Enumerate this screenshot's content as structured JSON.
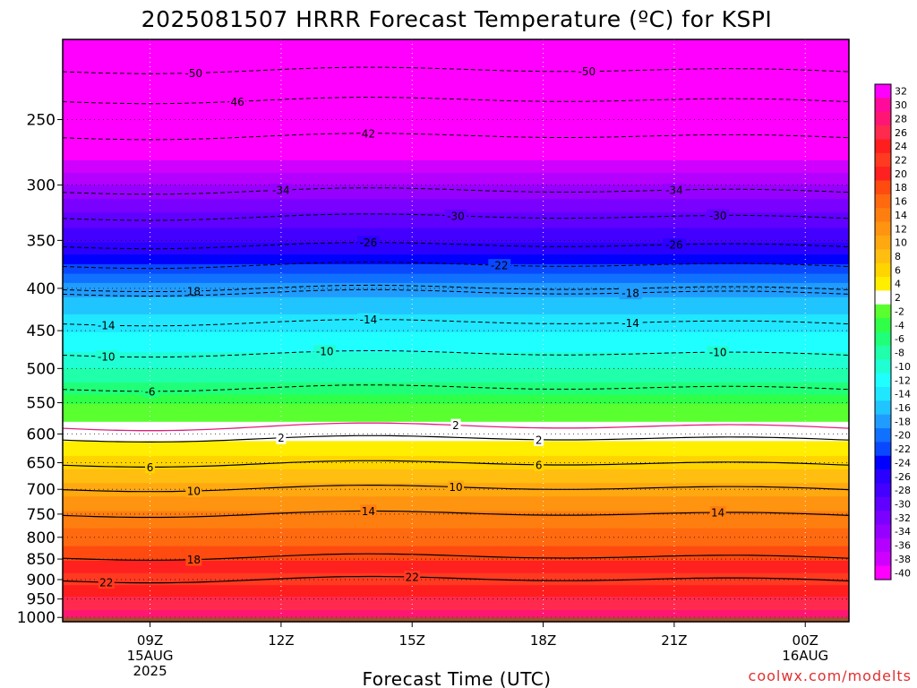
{
  "chart_data": {
    "type": "heatmap",
    "title": "2025081507 HRRR Forecast Temperature (ºC) for KSPI",
    "xlabel": "Forecast Time (UTC)",
    "ylabel": "",
    "credit": "coolwx.com/modelts",
    "credit_color": "#e03030",
    "x_ticks": [
      {
        "hour": 9,
        "lines": [
          "09Z",
          "15AUG",
          "2025"
        ]
      },
      {
        "hour": 12,
        "lines": [
          "12Z"
        ]
      },
      {
        "hour": 15,
        "lines": [
          "15Z"
        ]
      },
      {
        "hour": 18,
        "lines": [
          "18Z"
        ]
      },
      {
        "hour": 21,
        "lines": [
          "21Z"
        ]
      },
      {
        "hour": 24,
        "lines": [
          "00Z",
          "16AUG"
        ]
      }
    ],
    "xlim_hours": [
      7.0,
      25.0
    ],
    "y_ticks": [
      250,
      300,
      350,
      400,
      450,
      500,
      550,
      600,
      650,
      700,
      750,
      800,
      850,
      900,
      950,
      1000
    ],
    "ylim_hPa": [
      200,
      1012
    ],
    "y_scale": "log",
    "ground_level_hPa": 1000,
    "ground_color": "#a0522d",
    "grid": true,
    "colorbar": {
      "labels": [
        32,
        30,
        28,
        26,
        24,
        22,
        20,
        18,
        16,
        14,
        12,
        10,
        8,
        6,
        4,
        2,
        -2,
        -4,
        -6,
        -8,
        -10,
        -12,
        -14,
        -16,
        -18,
        -20,
        -22,
        -24,
        -26,
        -28,
        -30,
        -32,
        -34,
        -36,
        -38,
        -40
      ],
      "colors": [
        "#ff00ff",
        "#ff0a9a",
        "#ff1674",
        "#ff2a4e",
        "#ff1e1e",
        "#ff3a20",
        "#ff2020",
        "#ff4a10",
        "#ff6a10",
        "#ff7e10",
        "#ff9410",
        "#ffa810",
        "#ffbe10",
        "#ffd400",
        "#ffee00",
        "#ffffff",
        "#5aff30",
        "#30ff48",
        "#20ff78",
        "#20ffaa",
        "#20ffd4",
        "#20ffff",
        "#20e6ff",
        "#20c4ff",
        "#209cff",
        "#1070ff",
        "#0a48ff",
        "#0000ff",
        "#2a00ff",
        "#4400ff",
        "#6000ff",
        "#7a00ff",
        "#9600ff",
        "#b400ff",
        "#d000ff",
        "#ff00ff"
      ],
      "position": "right"
    },
    "temperature_profile": [
      {
        "p": 200,
        "t": -56
      },
      {
        "p": 230,
        "t": -49
      },
      {
        "p": 250,
        "t": -45
      },
      {
        "p": 270,
        "t": -41
      },
      {
        "p": 300,
        "t": -35
      },
      {
        "p": 330,
        "t": -30
      },
      {
        "p": 360,
        "t": -26
      },
      {
        "p": 380,
        "t": -22
      },
      {
        "p": 400,
        "t": -18
      },
      {
        "p": 440,
        "t": -14
      },
      {
        "p": 490,
        "t": -10
      },
      {
        "p": 530,
        "t": -6
      },
      {
        "p": 560,
        "t": -2
      },
      {
        "p": 600,
        "t": 2
      },
      {
        "p": 650,
        "t": 6
      },
      {
        "p": 700,
        "t": 10
      },
      {
        "p": 760,
        "t": 14
      },
      {
        "p": 840,
        "t": 18
      },
      {
        "p": 900,
        "t": 22
      },
      {
        "p": 960,
        "t": 26
      },
      {
        "p": 1000,
        "t": 28
      }
    ],
    "solid_contours": [
      {
        "label": "2",
        "p": 608,
        "label_hours": [
          12.0,
          17.9
        ]
      },
      {
        "label": "6",
        "p": 652,
        "label_hours": [
          9.0,
          17.9
        ]
      },
      {
        "label": "10",
        "p": 698,
        "label_hours": [
          10.0,
          16.0
        ]
      },
      {
        "label": "14",
        "p": 750,
        "label_hours": [
          14.0,
          22.0
        ]
      },
      {
        "label": "18",
        "p": 845,
        "label_hours": [
          10.0
        ]
      },
      {
        "label": "22",
        "p": 900,
        "label_hours": [
          8.0,
          15.0
        ]
      }
    ],
    "dashed_contours": [
      {
        "label": "-50",
        "p": 218,
        "label_hours": [
          10.0,
          19.0
        ]
      },
      {
        "label": "46",
        "p": 237,
        "label_hours": [
          11.0
        ]
      },
      {
        "label": "42",
        "p": 262,
        "label_hours": [
          14.0
        ]
      },
      {
        "label": "-34",
        "p": 305,
        "label_hours": [
          12.0,
          21.0
        ]
      },
      {
        "label": "-30",
        "p": 328,
        "label_hours": [
          16.0,
          22.0
        ]
      },
      {
        "label": "-26",
        "p": 355,
        "label_hours": [
          14.0,
          21.0
        ]
      },
      {
        "label": "-22",
        "p": 375,
        "label_hours": [
          17.0
        ]
      },
      {
        "label": "18",
        "p": 400,
        "label_hours": [
          10.0
        ]
      },
      {
        "label": "-18",
        "p": 405,
        "label_hours": [
          20.0
        ]
      },
      {
        "label": "-14",
        "p": 440,
        "label_hours": [
          8.0,
          14.0,
          20.0
        ]
      },
      {
        "label": "-10",
        "p": 480,
        "label_hours": [
          8.0,
          13.0,
          22.0
        ]
      },
      {
        "label": "-6",
        "p": 528,
        "label_hours": [
          9.0
        ]
      }
    ],
    "magenta_contour": {
      "label": "2",
      "p": 588,
      "label_hours": [
        16.0
      ]
    }
  }
}
